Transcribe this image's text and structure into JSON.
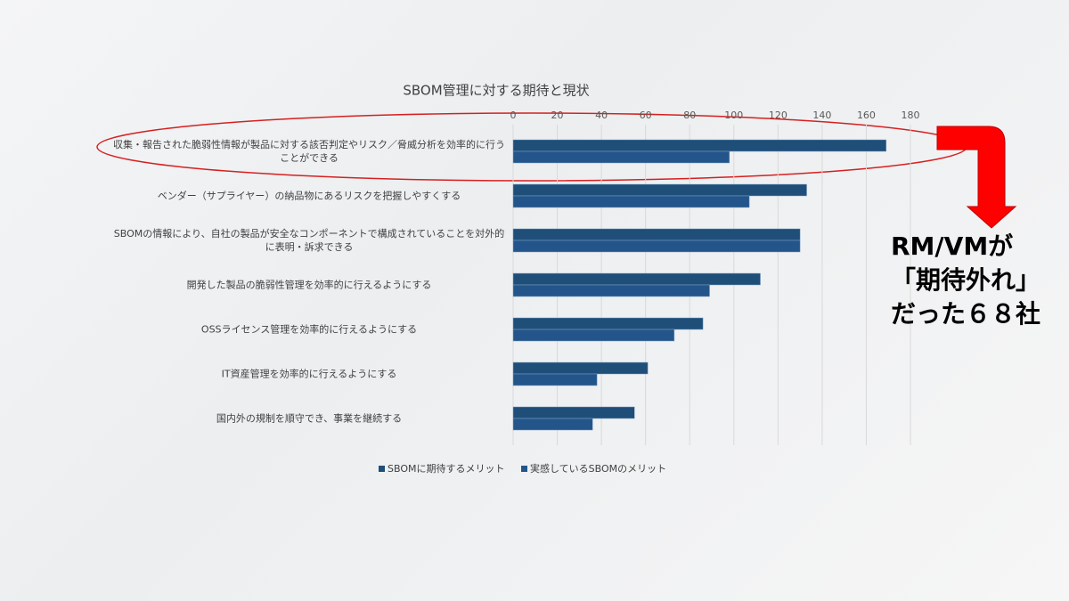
{
  "chart_data": {
    "type": "barh",
    "title": "SBOM管理に対する期待と現状",
    "categories": [
      "収集・報告された脆弱性情報が製品に対する該否判定やリスク／脅威分析を効率的に行うことができる",
      "ベンダー（サプライヤー）の納品物にあるリスクを把握しやすくする",
      "SBOMの情報により、自社の製品が安全なコンポーネントで構成されていることを対外的に表明・訴求できる",
      "開発した製品の脆弱性管理を効率的に行えるようにする",
      "OSSライセンス管理を効率的に行えるようにする",
      "IT資産管理を効率的に行えるようにする",
      "国内外の規制を順守でき、事業を継続する"
    ],
    "series": [
      {
        "name": "SBOMに期待するメリット",
        "color": "#1f4e79",
        "values": [
          169,
          133,
          130,
          112,
          86,
          61,
          55
        ]
      },
      {
        "name": "実感しているSBOMのメリット",
        "color": "#24558a",
        "values": [
          98,
          107,
          130,
          89,
          73,
          38,
          36
        ]
      }
    ],
    "xlim": [
      0,
      180
    ],
    "xticks": [
      0,
      20,
      40,
      60,
      80,
      100,
      120,
      140,
      160,
      180
    ],
    "grid": true,
    "legend": "bottom",
    "annotation": [
      "RM/VMが",
      "「期待外れ」",
      "だった６８社"
    ]
  }
}
